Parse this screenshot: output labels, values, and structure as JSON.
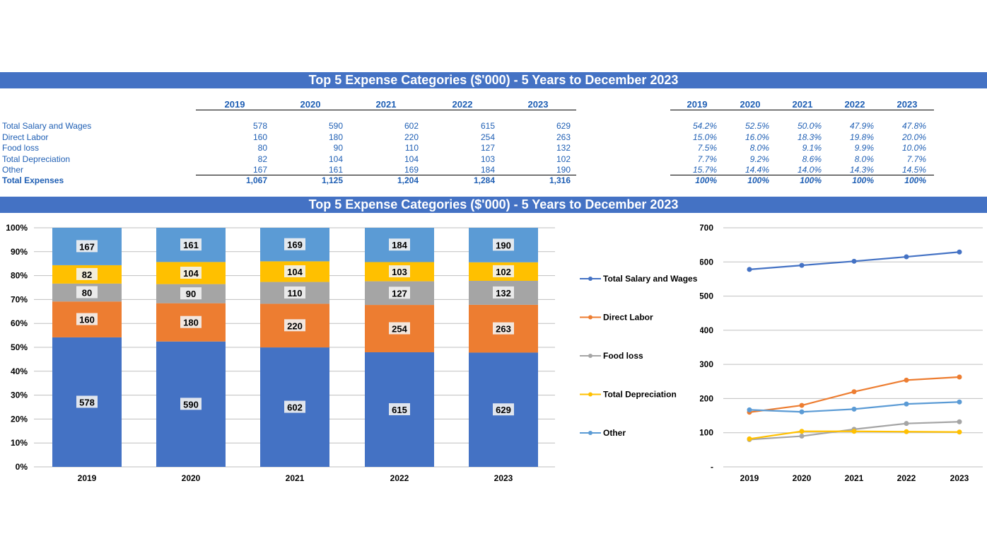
{
  "title_top": "Top 5 Expense Categories ($'000) - 5 Years to December 2023",
  "title_charts": "Top 5 Expense Categories ($'000) - 5 Years to December 2023",
  "years": [
    "2019",
    "2020",
    "2021",
    "2022",
    "2023"
  ],
  "table": {
    "rows": [
      {
        "label": "Total Salary and Wages",
        "values": [
          "578",
          "590",
          "602",
          "615",
          "629"
        ],
        "pct": [
          "54.2%",
          "52.5%",
          "50.0%",
          "47.9%",
          "47.8%"
        ]
      },
      {
        "label": "Direct Labor",
        "values": [
          "160",
          "180",
          "220",
          "254",
          "263"
        ],
        "pct": [
          "15.0%",
          "16.0%",
          "18.3%",
          "19.8%",
          "20.0%"
        ]
      },
      {
        "label": "Food loss",
        "values": [
          "80",
          "90",
          "110",
          "127",
          "132"
        ],
        "pct": [
          "7.5%",
          "8.0%",
          "9.1%",
          "9.9%",
          "10.0%"
        ]
      },
      {
        "label": "Total Depreciation",
        "values": [
          "82",
          "104",
          "104",
          "103",
          "102"
        ],
        "pct": [
          "7.7%",
          "9.2%",
          "8.6%",
          "8.0%",
          "7.7%"
        ]
      },
      {
        "label": "Other",
        "values": [
          "167",
          "161",
          "169",
          "184",
          "190"
        ],
        "pct": [
          "15.7%",
          "14.4%",
          "14.0%",
          "14.3%",
          "14.5%"
        ]
      }
    ],
    "total": {
      "label": "Total Expenses",
      "values": [
        "1,067",
        "1,125",
        "1,204",
        "1,284",
        "1,316"
      ],
      "pct": [
        "100%",
        "100%",
        "100%",
        "100%",
        "100%"
      ]
    }
  },
  "colors": {
    "Total Salary and Wages": "#4472c4",
    "Direct Labor": "#ed7d31",
    "Food loss": "#a5a5a5",
    "Total Depreciation": "#ffc000",
    "Other": "#5b9bd5"
  },
  "chart_data": [
    {
      "type": "bar",
      "stacked": "percent",
      "categories": [
        "2019",
        "2020",
        "2021",
        "2022",
        "2023"
      ],
      "series": [
        {
          "name": "Total Salary and Wages",
          "values": [
            578,
            590,
            602,
            615,
            629
          ]
        },
        {
          "name": "Direct Labor",
          "values": [
            160,
            180,
            220,
            254,
            263
          ]
        },
        {
          "name": "Food loss",
          "values": [
            80,
            90,
            110,
            127,
            132
          ]
        },
        {
          "name": "Total Depreciation",
          "values": [
            82,
            104,
            104,
            103,
            102
          ]
        },
        {
          "name": "Other",
          "values": [
            167,
            161,
            169,
            184,
            190
          ]
        }
      ],
      "ylim": [
        0,
        100
      ],
      "yticks": [
        "0%",
        "10%",
        "20%",
        "30%",
        "40%",
        "50%",
        "60%",
        "70%",
        "80%",
        "90%",
        "100%"
      ],
      "grid": true,
      "data_labels": true
    },
    {
      "type": "line",
      "x": [
        "2019",
        "2020",
        "2021",
        "2022",
        "2023"
      ],
      "series": [
        {
          "name": "Total Salary and Wages",
          "values": [
            578,
            590,
            602,
            615,
            629
          ]
        },
        {
          "name": "Direct Labor",
          "values": [
            160,
            180,
            220,
            254,
            263
          ]
        },
        {
          "name": "Food loss",
          "values": [
            80,
            90,
            110,
            127,
            132
          ]
        },
        {
          "name": "Total Depreciation",
          "values": [
            82,
            104,
            104,
            103,
            102
          ]
        },
        {
          "name": "Other",
          "values": [
            167,
            161,
            169,
            184,
            190
          ]
        }
      ],
      "ylim": [
        0,
        700
      ],
      "yticks": [
        "-",
        "100",
        "200",
        "300",
        "400",
        "500",
        "600",
        "700"
      ],
      "grid": true,
      "legend": "left"
    }
  ]
}
